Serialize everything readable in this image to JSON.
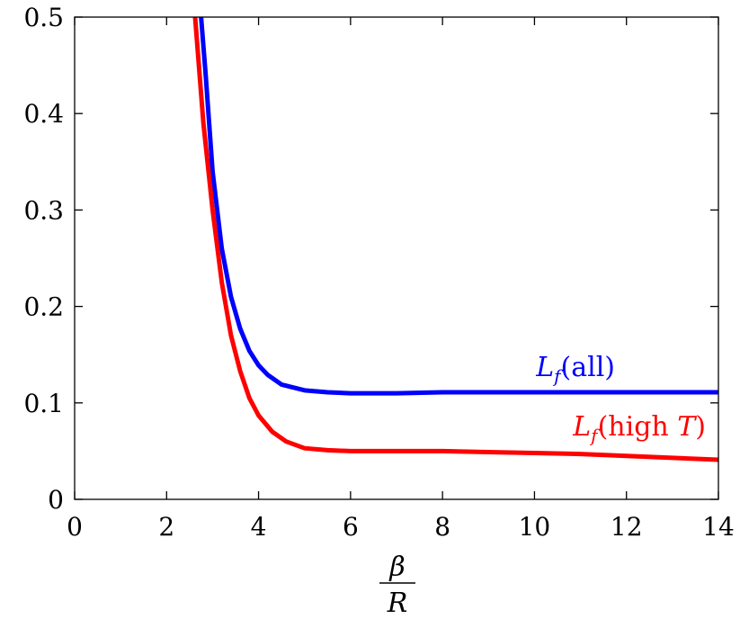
{
  "chart_data": {
    "type": "line",
    "title": "",
    "xlabel": {
      "numerator": "β",
      "denominator": "R"
    },
    "ylabel": "",
    "xlim": [
      0,
      14
    ],
    "ylim": [
      0,
      0.5
    ],
    "xticks": [
      0,
      2,
      4,
      6,
      8,
      10,
      12,
      14
    ],
    "yticks": [
      0,
      0.1,
      0.2,
      0.3,
      0.4,
      0.5
    ],
    "xtick_labels": [
      "0",
      "2",
      "4",
      "6",
      "8",
      "10",
      "12",
      "14"
    ],
    "ytick_labels": [
      "0",
      "0.1",
      "0.2",
      "0.3",
      "0.4",
      "0.5"
    ],
    "grid": false,
    "series": [
      {
        "name": "L_f(all)",
        "label_main": "L",
        "label_sub": "f",
        "label_rest": "(all)",
        "color": "#0000ff",
        "x": [
          2.75,
          2.85,
          3.0,
          3.2,
          3.4,
          3.6,
          3.8,
          4.0,
          4.2,
          4.5,
          5.0,
          5.5,
          6.0,
          7.0,
          8.0,
          9.0,
          10.0,
          11.0,
          12.0,
          13.0,
          14.0
        ],
        "y": [
          0.5,
          0.44,
          0.34,
          0.26,
          0.21,
          0.177,
          0.154,
          0.139,
          0.129,
          0.119,
          0.113,
          0.111,
          0.11,
          0.11,
          0.111,
          0.111,
          0.111,
          0.111,
          0.111,
          0.111,
          0.111
        ]
      },
      {
        "name": "L_f(high T)",
        "label_main": "L",
        "label_sub": "f",
        "label_rest": "(high ",
        "label_italic_tail": "T",
        "label_close": ")",
        "color": "#ff0000",
        "x": [
          2.62,
          2.8,
          3.0,
          3.2,
          3.4,
          3.6,
          3.8,
          4.0,
          4.3,
          4.6,
          5.0,
          5.5,
          6.0,
          7.0,
          8.0,
          9.0,
          10.0,
          11.0,
          12.0,
          13.0,
          14.0
        ],
        "y": [
          0.5,
          0.39,
          0.3,
          0.225,
          0.17,
          0.133,
          0.105,
          0.087,
          0.07,
          0.06,
          0.053,
          0.051,
          0.05,
          0.05,
          0.05,
          0.049,
          0.048,
          0.047,
          0.045,
          0.043,
          0.041
        ]
      }
    ]
  }
}
